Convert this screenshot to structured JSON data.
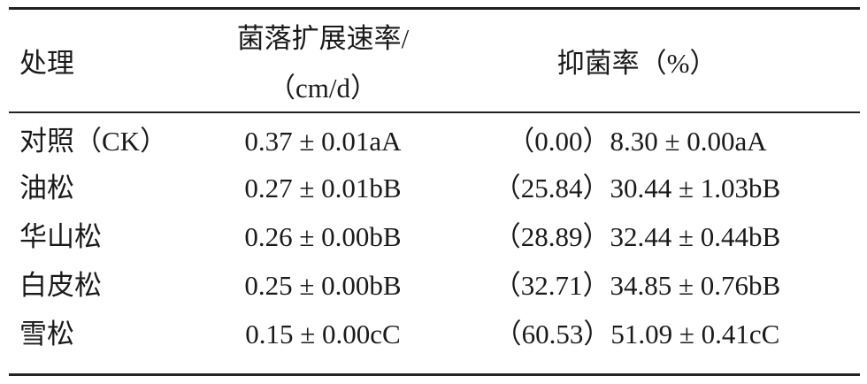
{
  "table": {
    "header": [
      "处理",
      [
        "菌落扩展速率/",
        "（cm/d）"
      ],
      "抑菌率（%）"
    ],
    "rows": [
      [
        "对照（CK）",
        "0.37 ± 0.01aA",
        "（0.00）8.30 ± 0.00aA"
      ],
      [
        "油松",
        "0.27 ± 0.01bB",
        "（25.84）30.44 ± 1.03bB"
      ],
      [
        "华山松",
        "0.26 ± 0.00bB",
        "（28.89）32.44 ± 0.44bB"
      ],
      [
        "白皮松",
        "0.25 ± 0.00bB",
        "（32.71）34.85 ± 0.76bB"
      ],
      [
        "雪松",
        "0.15 ± 0.00cC",
        "（60.53）51.09 ± 0.41cC"
      ]
    ]
  }
}
